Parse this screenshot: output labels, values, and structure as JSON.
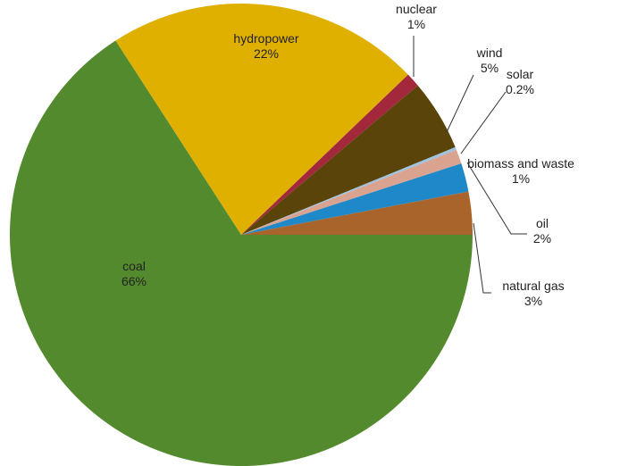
{
  "chart_data": {
    "type": "pie",
    "categories": [
      "coal",
      "hydropower",
      "nuclear",
      "wind",
      "solar",
      "biomass and waste",
      "oil",
      "natural gas"
    ],
    "values": [
      66,
      22,
      1,
      5,
      0.2,
      1,
      2,
      3
    ],
    "value_labels": [
      "66%",
      "22%",
      "1%",
      "5%",
      "0.2%",
      "1%",
      "2%",
      "3%"
    ],
    "colors": [
      "#548a2e",
      "#e0b000",
      "#a3283c",
      "#5a4409",
      "#9ec3e0",
      "#d9a38f",
      "#1e88c8",
      "#a8642a"
    ]
  }
}
